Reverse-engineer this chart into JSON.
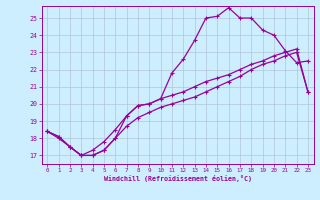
{
  "xlabel": "Windchill (Refroidissement éolien,°C)",
  "bg_color": "#cceeff",
  "line_color": "#990099",
  "grid_color": "#aabbcc",
  "xlim": [
    -0.5,
    23.5
  ],
  "ylim": [
    16.5,
    25.7
  ],
  "yticks": [
    17,
    18,
    19,
    20,
    21,
    22,
    23,
    24,
    25
  ],
  "xticks": [
    0,
    1,
    2,
    3,
    4,
    5,
    6,
    7,
    8,
    9,
    10,
    11,
    12,
    13,
    14,
    15,
    16,
    17,
    18,
    19,
    20,
    21,
    22,
    23
  ],
  "line1_x": [
    0,
    1,
    2,
    3,
    4,
    5,
    6,
    7,
    8,
    9,
    10,
    11,
    12,
    13,
    14,
    15,
    16,
    17,
    18,
    19,
    20,
    21,
    22,
    23
  ],
  "line1_y": [
    18.4,
    18.1,
    17.5,
    17.0,
    17.0,
    17.3,
    18.0,
    19.3,
    19.9,
    20.0,
    20.3,
    21.8,
    22.6,
    23.7,
    25.0,
    25.1,
    25.6,
    25.0,
    25.0,
    24.3,
    24.0,
    23.1,
    22.4,
    22.5
  ],
  "line2_x": [
    0,
    1,
    2,
    3,
    4,
    5,
    6,
    7,
    8,
    9,
    10,
    11,
    12,
    13,
    14,
    15,
    16,
    17,
    18,
    19,
    20,
    21,
    22,
    23
  ],
  "line2_y": [
    18.4,
    18.1,
    17.5,
    17.0,
    17.3,
    17.8,
    18.5,
    19.3,
    19.9,
    20.0,
    20.3,
    20.5,
    20.7,
    21.0,
    21.3,
    21.5,
    21.7,
    22.0,
    22.3,
    22.5,
    22.8,
    23.0,
    23.2,
    20.7
  ],
  "line3_x": [
    0,
    1,
    2,
    3,
    4,
    5,
    6,
    7,
    8,
    9,
    10,
    11,
    12,
    13,
    14,
    15,
    16,
    17,
    18,
    19,
    20,
    21,
    22,
    23
  ],
  "line3_y": [
    18.4,
    18.0,
    17.5,
    17.0,
    17.0,
    17.3,
    18.0,
    18.7,
    19.2,
    19.5,
    19.8,
    20.0,
    20.2,
    20.4,
    20.7,
    21.0,
    21.3,
    21.6,
    22.0,
    22.3,
    22.5,
    22.8,
    23.0,
    20.7
  ]
}
